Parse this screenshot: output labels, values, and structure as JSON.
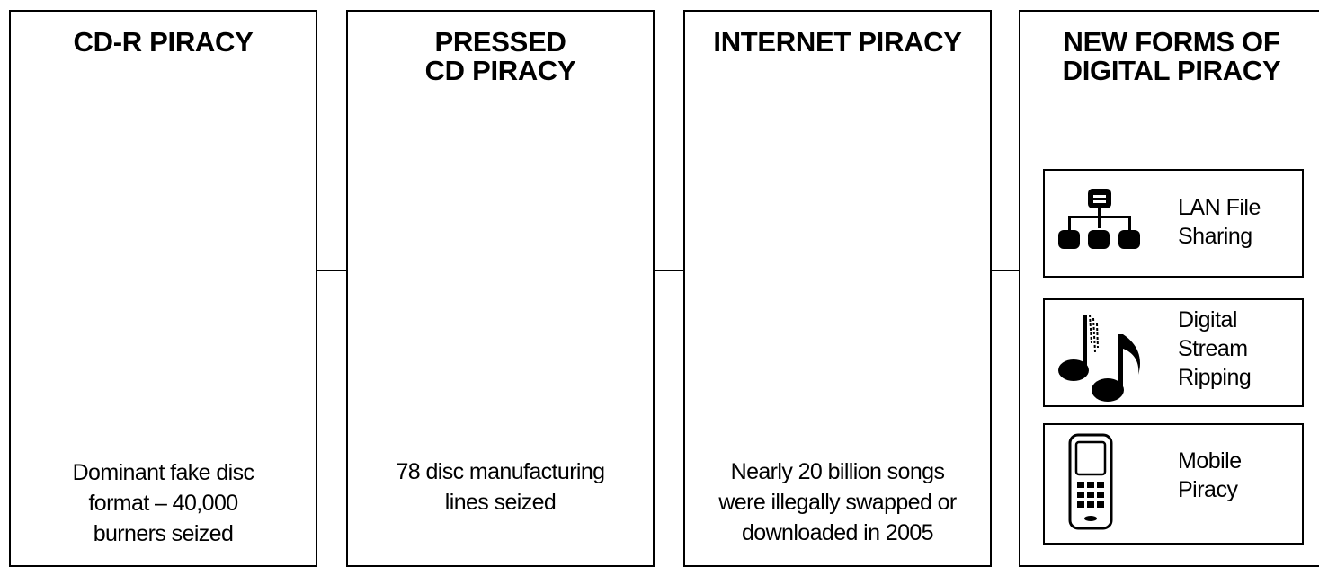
{
  "panels": [
    {
      "title": "CD-R PIRACY",
      "caption": "Dominant fake disc\nformat – 40,000\nburners seized"
    },
    {
      "title": "PRESSED\nCD PIRACY",
      "caption": "78 disc manufacturing\nlines seized"
    },
    {
      "title": "INTERNET PIRACY",
      "caption": "Nearly 20 billion songs\nwere illegally swapped or\ndownloaded in 2005"
    },
    {
      "title": "NEW FORMS OF\nDIGITAL PIRACY",
      "items": [
        {
          "label": "LAN File\nSharing",
          "icon": "network-icon"
        },
        {
          "label": "Digital\nStream\nRipping",
          "icon": "music-notes-icon"
        },
        {
          "label": "Mobile\nPiracy",
          "icon": "mobile-phone-icon"
        }
      ]
    }
  ]
}
